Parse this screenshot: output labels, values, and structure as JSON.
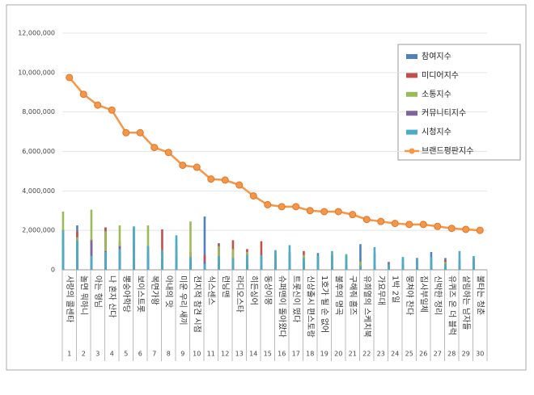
{
  "chart_data": {
    "type": "bar",
    "categories": [
      "사랑의 콜센타",
      "놀면 뭐하니",
      "아는 형님",
      "나 혼자 산다",
      "뽕숭아학당",
      "보이스트롯",
      "복면가왕",
      "아내의 맛",
      "미운 우리 새끼",
      "전지적 참견 시점",
      "식스센스",
      "런닝맨",
      "라디오스타",
      "히든싱어",
      "동상이몽",
      "슈퍼맨이 돌아왔다",
      "트롯신이 떴다",
      "신상출시 편스토랑",
      "1호가 될 순 없어",
      "불후의 명곡",
      "구해줘 홈즈",
      "유희열의 스케치북",
      "가요무대",
      "1박 2일",
      "뭉쳐야 찬다",
      "집사부일체",
      "신박한 정리",
      "유퀴즈 온 더 블럭",
      "살림하는 남자들",
      "불타는 청춘"
    ],
    "rank_labels": [
      1,
      2,
      3,
      4,
      5,
      6,
      7,
      8,
      9,
      10,
      11,
      12,
      13,
      14,
      15,
      16,
      17,
      18,
      19,
      20,
      21,
      22,
      23,
      24,
      25,
      26,
      27,
      28,
      29,
      30
    ],
    "ylim": [
      0,
      12000000
    ],
    "yticks": [
      {
        "value": 0,
        "label": "0"
      },
      {
        "value": 2000000,
        "label": "2,000,000"
      },
      {
        "value": 4000000,
        "label": "4,000,000"
      },
      {
        "value": 6000000,
        "label": "6,000,000"
      },
      {
        "value": 8000000,
        "label": "8,000,000"
      },
      {
        "value": 10000000,
        "label": "10,000,000"
      },
      {
        "value": 12000000,
        "label": "12,000,000"
      }
    ],
    "grid": true,
    "legend": "top-right",
    "series": [
      {
        "name": "참여지수",
        "type": "bar",
        "color": "#4f81bd",
        "values": [
          1600000,
          2250000,
          1300000,
          2150000,
          1200000,
          2150000,
          1000000,
          950000,
          550000,
          600000,
          2700000,
          1350000,
          600000,
          750000,
          450000,
          700000,
          700000,
          450000,
          850000,
          300000,
          550000,
          1300000,
          850000,
          400000,
          300000,
          450000,
          900000,
          600000,
          100000,
          450000
        ]
      },
      {
        "name": "미디어지수",
        "type": "bar",
        "color": "#c0504d",
        "values": [
          2050000,
          1950000,
          1550000,
          2150000,
          1450000,
          1400000,
          1150000,
          2050000,
          1200000,
          900000,
          750000,
          1300000,
          1500000,
          1050000,
          1450000,
          950000,
          900000,
          950000,
          650000,
          750000,
          650000,
          350000,
          200000,
          350000,
          550000,
          600000,
          400000,
          500000,
          500000,
          600000
        ]
      },
      {
        "name": "소통지수",
        "type": "bar",
        "color": "#9bbb59",
        "values": [
          2950000,
          1650000,
          3050000,
          1950000,
          2250000,
          700000,
          2250000,
          950000,
          1550000,
          2450000,
          400000,
          1200000,
          1050000,
          900000,
          700000,
          650000,
          400000,
          750000,
          500000,
          600000,
          800000,
          400000,
          100000,
          200000,
          200000,
          300000,
          400000,
          400000,
          150000,
          250000
        ]
      },
      {
        "name": "커뮤니티지수",
        "type": "bar",
        "color": "#8064a2",
        "values": [
          1100000,
          1450000,
          1500000,
          950000,
          1200000,
          400000,
          800000,
          600000,
          650000,
          500000,
          500000,
          500000,
          500000,
          300000,
          250000,
          350000,
          300000,
          450000,
          300000,
          200000,
          250000,
          100000,
          50000,
          100000,
          200000,
          150000,
          150000,
          150000,
          50000,
          100000
        ]
      },
      {
        "name": "시청지수",
        "type": "bar",
        "color": "#4bacc6",
        "values": [
          2000000,
          1500000,
          700000,
          900000,
          1050000,
          2200000,
          1200000,
          1000000,
          1750000,
          650000,
          300000,
          700000,
          600000,
          750000,
          750000,
          1000000,
          1250000,
          600000,
          700000,
          950000,
          750000,
          200000,
          1150000,
          300000,
          650000,
          600000,
          650000,
          300000,
          950000,
          700000
        ]
      },
      {
        "name": "브랜드평판지수",
        "type": "line",
        "color": "#f79646",
        "values": [
          9750000,
          8900000,
          8350000,
          8100000,
          6950000,
          6950000,
          6200000,
          5950000,
          5300000,
          5200000,
          4600000,
          4550000,
          4300000,
          3750000,
          3300000,
          3200000,
          3200000,
          3000000,
          2950000,
          2950000,
          2800000,
          2550000,
          2450000,
          2350000,
          2300000,
          2300000,
          2200000,
          2100000,
          2050000,
          2000000
        ]
      }
    ]
  }
}
